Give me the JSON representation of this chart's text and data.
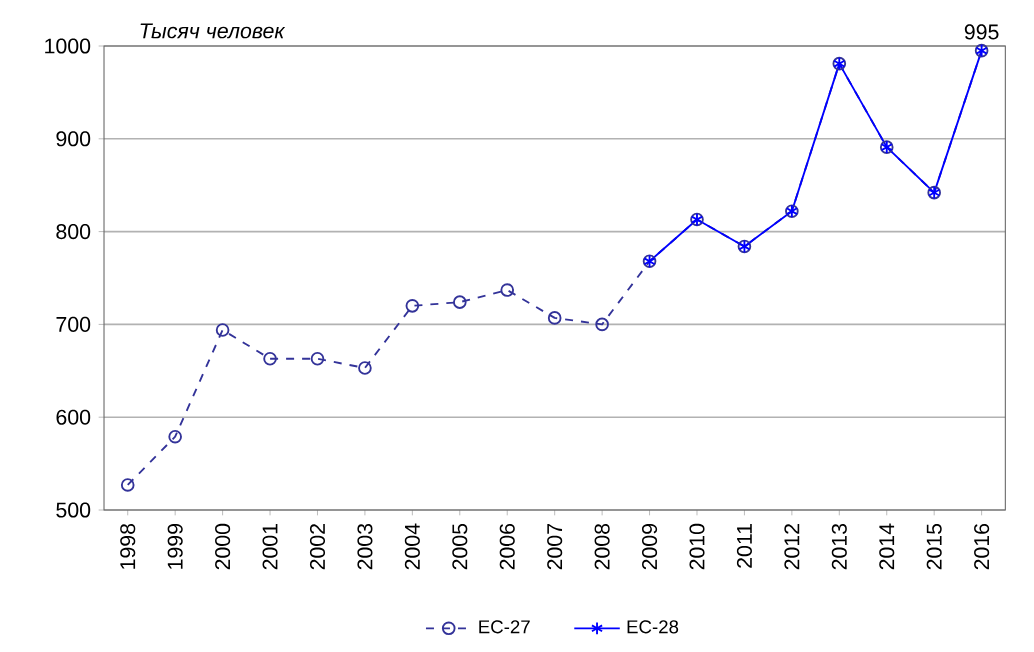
{
  "chart_data": {
    "type": "line",
    "ylabel": "Тысяч человек",
    "categories": [
      "1998",
      "1999",
      "2000",
      "2001",
      "2002",
      "2003",
      "2004",
      "2005",
      "2006",
      "2007",
      "2008",
      "2009",
      "2010",
      "2011",
      "2012",
      "2013",
      "2014",
      "2015",
      "2016"
    ],
    "series": [
      {
        "name": "ЕС-27",
        "color": "#333399",
        "marker": "circle",
        "line_style": "dashed",
        "values": [
          527,
          579,
          694,
          663,
          663,
          653,
          720,
          724,
          737,
          707,
          700,
          768,
          813,
          784,
          822,
          981,
          891,
          842,
          995
        ]
      },
      {
        "name": "ЕС-28",
        "color": "#0000ff",
        "marker": "cross",
        "line_style": "solid",
        "values": [
          null,
          null,
          null,
          null,
          null,
          null,
          null,
          null,
          null,
          null,
          null,
          768,
          813,
          784,
          822,
          981,
          891,
          842,
          995
        ],
        "value_labels": [
          null,
          null,
          null,
          null,
          null,
          null,
          null,
          null,
          null,
          null,
          null,
          null,
          null,
          null,
          null,
          null,
          null,
          null,
          "995"
        ]
      }
    ],
    "ylim": [
      500,
      1000
    ],
    "yticks": [
      500,
      600,
      700,
      800,
      900,
      1000
    ],
    "grid": "y",
    "legend": "bottom"
  }
}
